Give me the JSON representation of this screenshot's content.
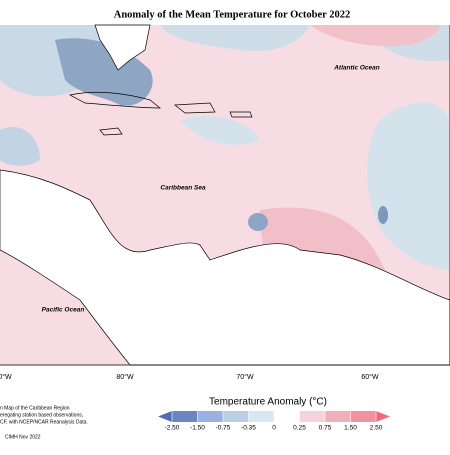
{
  "title": "Anomaly of the Mean Temperature for October 2022",
  "map": {
    "labels": [
      "Atlantic Ocean",
      "Caribbean Sea",
      "Pacific Ocean"
    ],
    "longitudes": [
      "0°W",
      "80°W",
      "70°W",
      "60°W"
    ]
  },
  "colorbar": {
    "title": "Temperature Anomaly (°C)",
    "ticks": [
      {
        "value": -2.5,
        "label": "-2.50"
      },
      {
        "value": -1.5,
        "label": "-1.50"
      },
      {
        "value": -0.75,
        "label": "-0.75"
      },
      {
        "value": -0.35,
        "label": "-0.35"
      },
      0,
      {
        "value": 0.25,
        "label": "0.25"
      },
      {
        "value": 0.75,
        "label": "0.75"
      },
      {
        "value": 1.5,
        "label": "1.50"
      },
      {
        "value": 2.5,
        "label": "2.50"
      }
    ],
    "colors": [
      "#4f6fb5",
      "#6a86c0",
      "#9bb2e0",
      "#b9cfe6",
      "#d9e8f0",
      "#ffffff",
      "#f6d3da",
      "#efb0bb",
      "#f2929e",
      "#f26a7a"
    ]
  },
  "credits": [
    "n Map of the Caribbean Region",
    "eregating station based observations,",
    "CF, with NCEP/NCAR Reanalysis Data.",
    "CIMH Nov 2022"
  ]
}
